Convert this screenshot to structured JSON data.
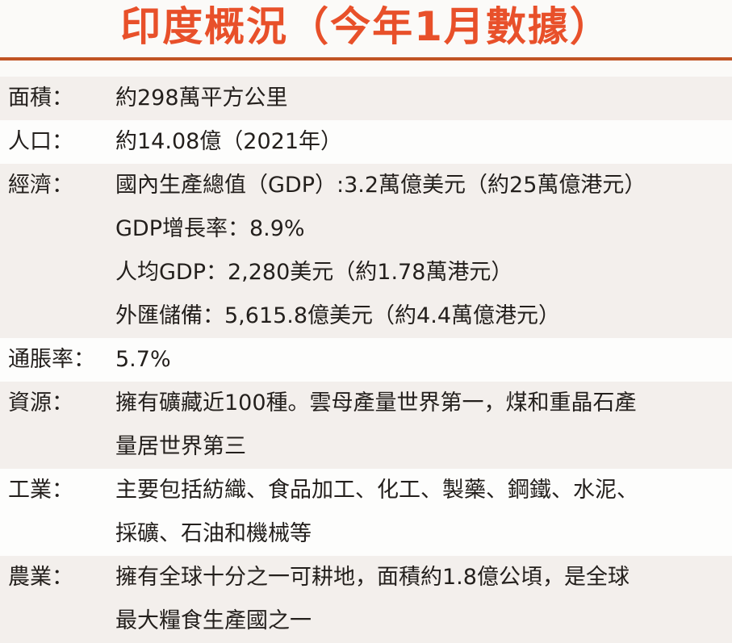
{
  "title": "印度概況（今年1月數據）",
  "colors": {
    "title": "#e8502a",
    "rule": "#c05424",
    "shaded_row": "#f3efec"
  },
  "rows": [
    {
      "label": "面積：",
      "lines": [
        "約298萬平方公里"
      ]
    },
    {
      "label": "人口：",
      "lines": [
        "約14.08億（2021年）"
      ]
    },
    {
      "label": "經濟：",
      "lines": [
        "國內生產總值（GDP）:3.2萬億美元（約25萬億港元）",
        "GDP增長率：8.9%",
        "人均GDP：2,280美元（約1.78萬港元）",
        "外匯儲備：5,615.8億美元（約4.4萬億港元）"
      ]
    },
    {
      "label": "通脹率：",
      "lines": [
        "5.7%"
      ]
    },
    {
      "label": "資源：",
      "lines": [
        "擁有礦藏近100種。雲母產量世界第一，煤和重晶石產",
        "量居世界第三"
      ]
    },
    {
      "label": "工業：",
      "lines": [
        "主要包括紡織、食品加工、化工、製藥、鋼鐵、水泥、",
        "採礦、石油和機械等"
      ]
    },
    {
      "label": "農業：",
      "lines": [
        "擁有全球十分之一可耕地，面積約1.8億公頃，是全球",
        "最大糧食生產國之一"
      ]
    }
  ]
}
